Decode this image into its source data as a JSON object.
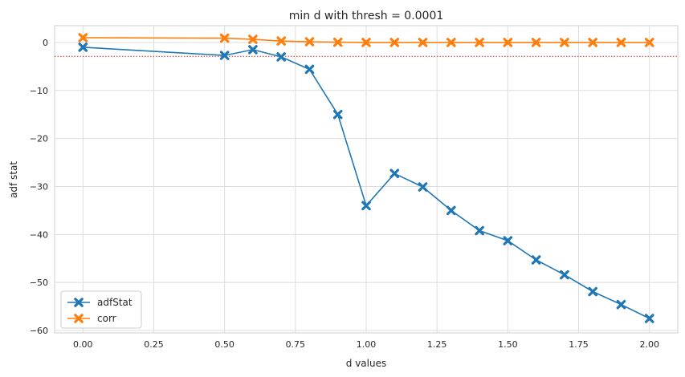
{
  "chart_data": {
    "type": "line",
    "title": "min d with thresh = 0.0001",
    "xlabel": "d values",
    "ylabel": "adf stat",
    "xlim": [
      -0.1,
      2.1
    ],
    "ylim": [
      -60.5,
      3.5
    ],
    "x_ticks": [
      0.0,
      0.25,
      0.5,
      0.75,
      1.0,
      1.25,
      1.5,
      1.75,
      2.0
    ],
    "x_tick_labels": [
      "0.00",
      "0.25",
      "0.50",
      "0.75",
      "1.00",
      "1.25",
      "1.50",
      "1.75",
      "2.00"
    ],
    "y_ticks": [
      0,
      -10,
      -20,
      -30,
      -40,
      -50,
      -60
    ],
    "y_tick_labels": [
      "0",
      "−10",
      "−20",
      "−30",
      "−40",
      "−50",
      "−60"
    ],
    "grid": true,
    "legend_position": "bottom-left",
    "x": [
      0.0,
      0.5,
      0.6,
      0.7,
      0.8,
      0.9,
      1.0,
      1.1,
      1.2,
      1.3,
      1.4,
      1.5,
      1.6,
      1.7,
      1.8,
      1.9,
      2.0
    ],
    "series": [
      {
        "name": "adfStat",
        "color": "#1f77b4",
        "marker": "x-filled",
        "values": [
          -1.0,
          -2.7,
          -1.5,
          -3.0,
          -5.6,
          -15.0,
          -34.0,
          -27.3,
          -30.1,
          -35.0,
          -39.2,
          -41.3,
          -45.3,
          -48.4,
          -51.9,
          -54.6,
          -57.5
        ]
      },
      {
        "name": "corr",
        "color": "#ff7f0e",
        "marker": "x-filled",
        "values": [
          1.0,
          0.9,
          0.65,
          0.3,
          0.15,
          0.05,
          0.01,
          0.01,
          0.0,
          0.0,
          0.0,
          0.0,
          0.0,
          0.0,
          0.0,
          0.0,
          0.0
        ]
      }
    ],
    "threshold_line": {
      "y": -2.9,
      "color": "#d62728",
      "style": "dotted"
    }
  }
}
